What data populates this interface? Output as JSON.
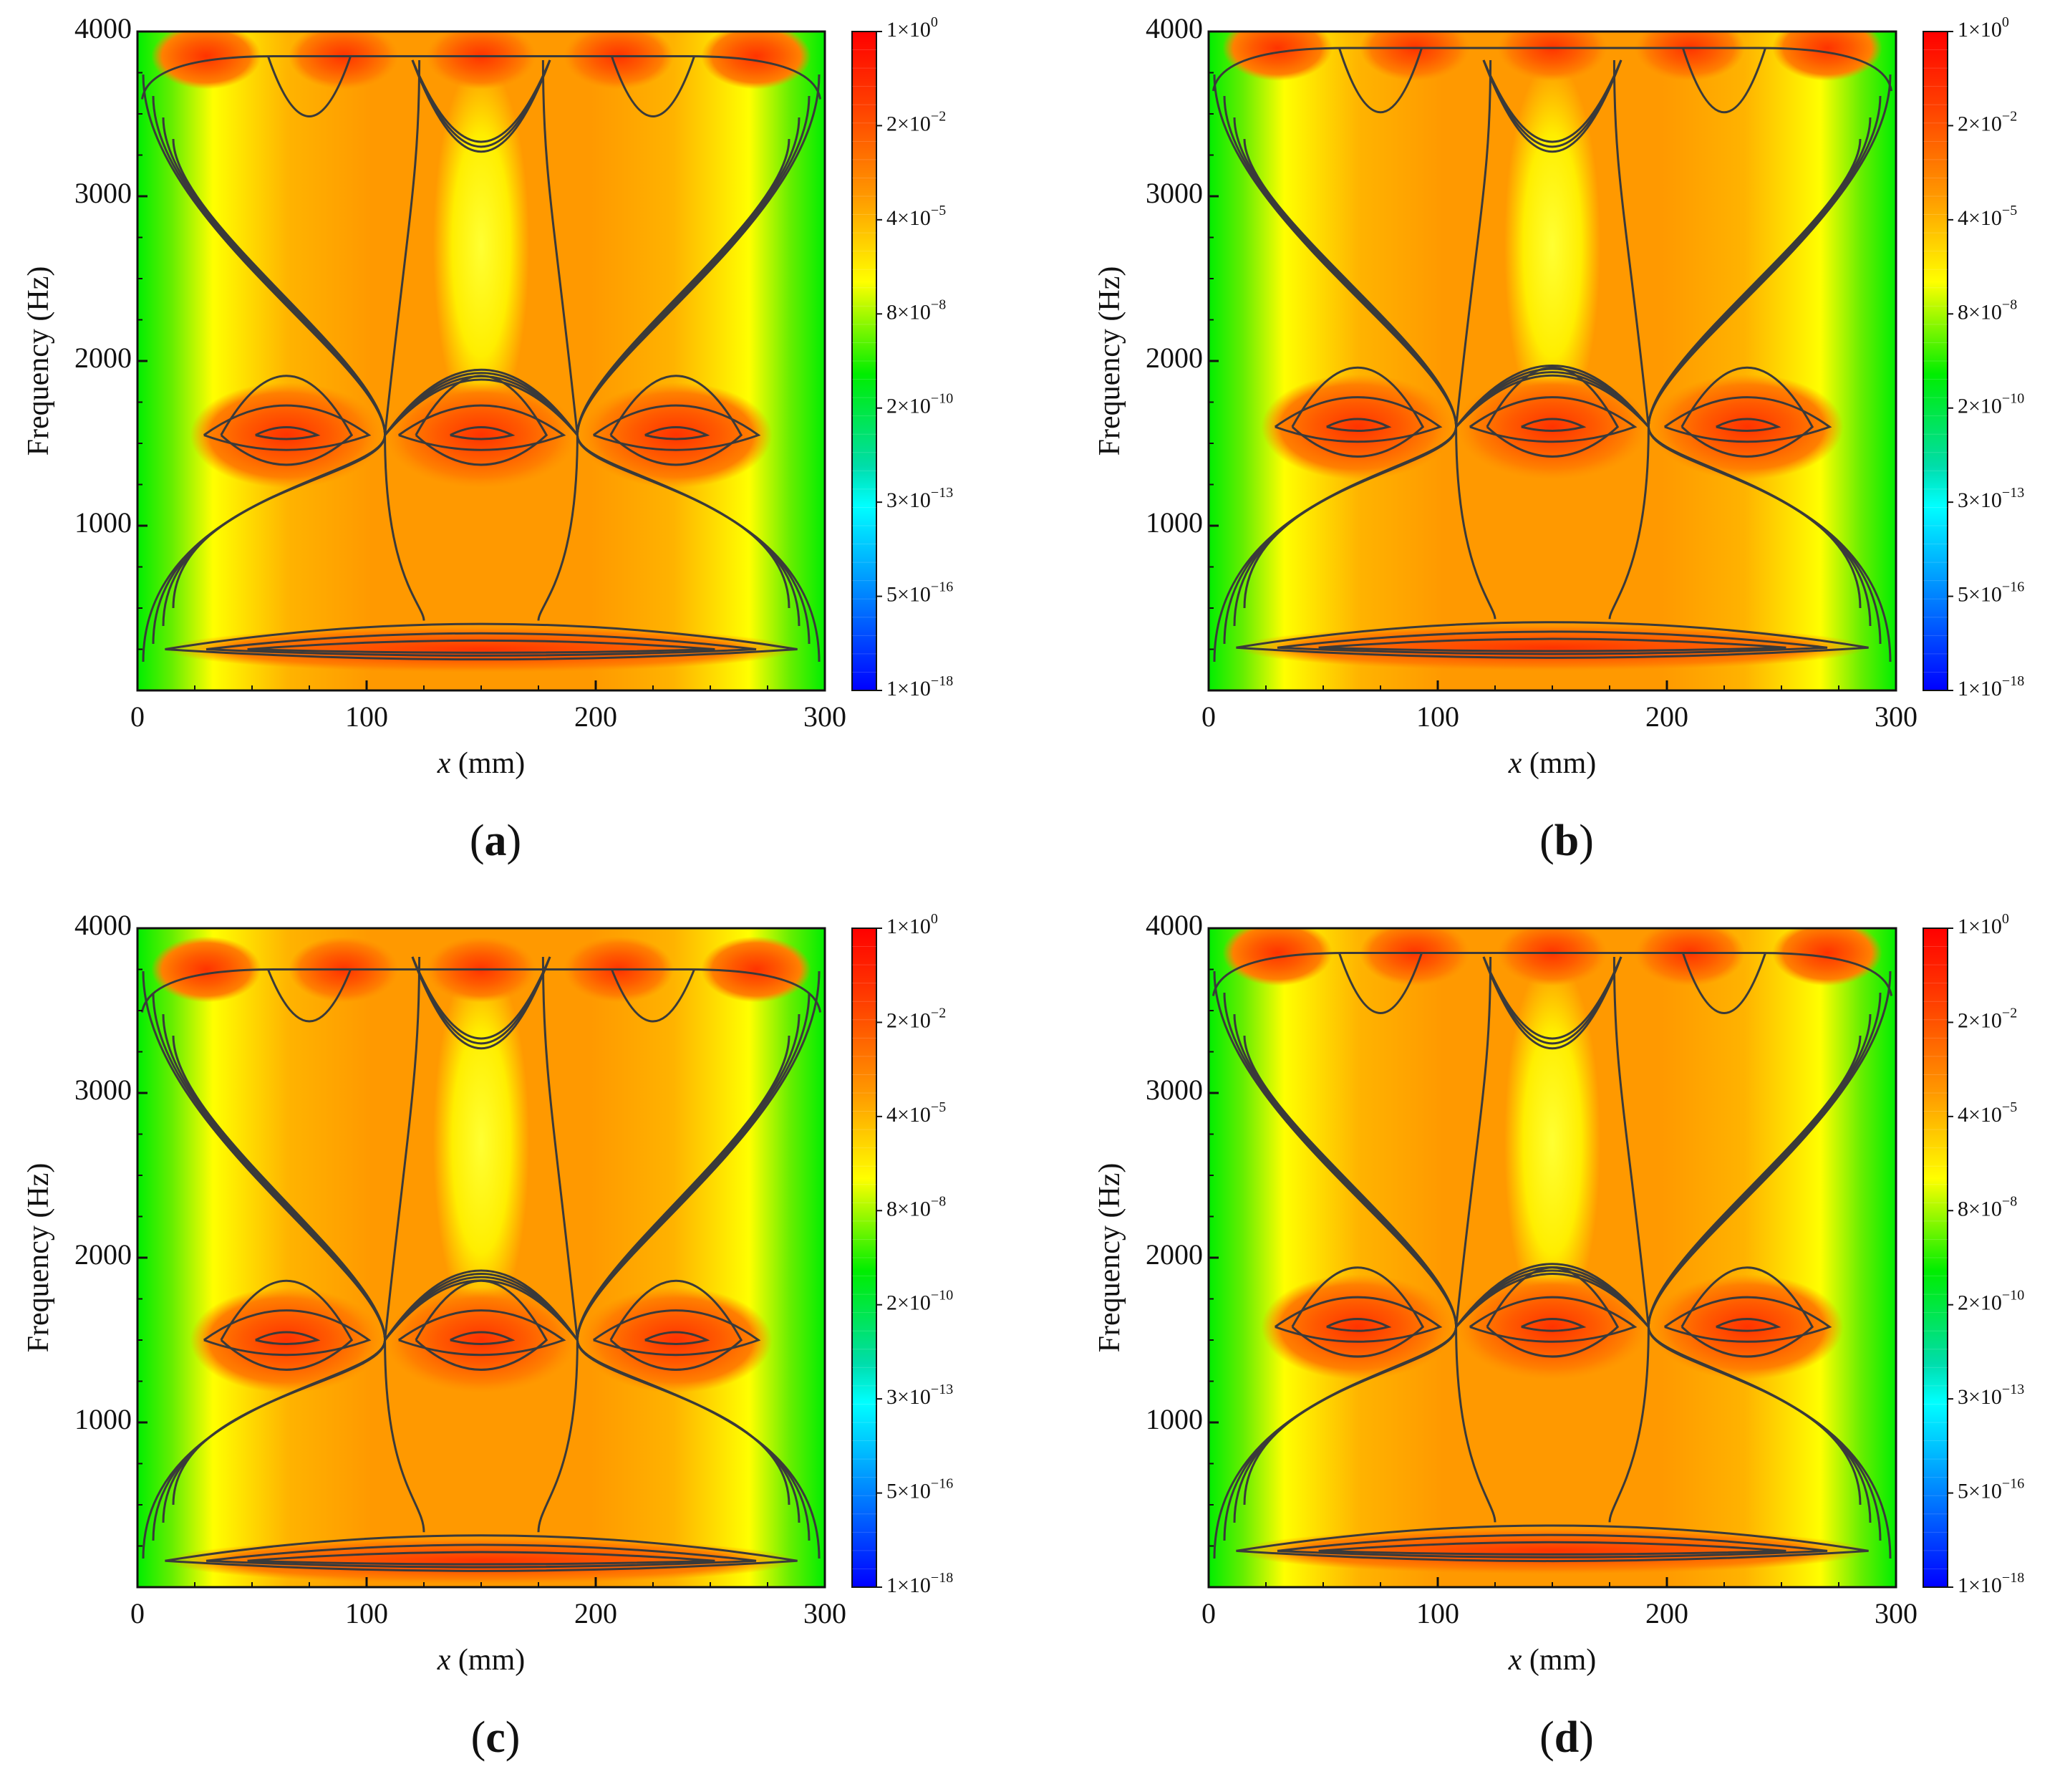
{
  "colors": {
    "low": "#0000ff",
    "mid_low": "#00ffff",
    "mid": "#00ee00",
    "mid_high": "#ffff00",
    "high_mid": "#ff9900",
    "high": "#ff0000",
    "contour": "#3a3a3a"
  },
  "colorbar_labels": [
    {
      "mant": "1×10",
      "exp": "0"
    },
    {
      "mant": "2×10",
      "exp": "−2"
    },
    {
      "mant": "4×10",
      "exp": "−5"
    },
    {
      "mant": "8×10",
      "exp": "−8"
    },
    {
      "mant": "2×10",
      "exp": "−10"
    },
    {
      "mant": "3×10",
      "exp": "−13"
    },
    {
      "mant": "5×10",
      "exp": "−16"
    },
    {
      "mant": "1×10",
      "exp": "−18"
    }
  ],
  "chart_data": [
    {
      "type": "heatmap",
      "panel_label": "a",
      "xlabel_italic": "x",
      "xlabel_rest": " (mm)",
      "ylabel": "Frequency (Hz)",
      "xlim": [
        0,
        300
      ],
      "ylim": [
        0,
        4000
      ],
      "xticks": [
        "0",
        "100",
        "200",
        "300"
      ],
      "yticks": [
        "4000",
        "3000",
        "2000",
        "1000"
      ],
      "colorscale": "log",
      "clim": [
        1e-18,
        1
      ],
      "resonance_bands_hz": [
        250,
        1550,
        3850
      ],
      "peak_positions_mm": [
        65,
        150,
        235
      ]
    },
    {
      "type": "heatmap",
      "panel_label": "b",
      "xlabel_italic": "x",
      "xlabel_rest": " (mm)",
      "ylabel": "Frequency (Hz)",
      "xlim": [
        0,
        300
      ],
      "ylim": [
        0,
        4000
      ],
      "xticks": [
        "0",
        "100",
        "200",
        "300"
      ],
      "yticks": [
        "4000",
        "3000",
        "2000",
        "1000"
      ],
      "colorscale": "log",
      "clim": [
        1e-18,
        1
      ],
      "resonance_bands_hz": [
        260,
        1600,
        3900
      ],
      "peak_positions_mm": [
        65,
        150,
        235
      ]
    },
    {
      "type": "heatmap",
      "panel_label": "c",
      "xlabel_italic": "x",
      "xlabel_rest": " (mm)",
      "ylabel": "Frequency (Hz)",
      "xlim": [
        0,
        300
      ],
      "ylim": [
        0,
        4000
      ],
      "xticks": [
        "0",
        "100",
        "200",
        "300"
      ],
      "yticks": [
        "4000",
        "3000",
        "2000",
        "1000"
      ],
      "colorscale": "log",
      "clim": [
        1e-18,
        1
      ],
      "resonance_bands_hz": [
        160,
        1500,
        3750
      ],
      "peak_positions_mm": [
        65,
        150,
        235
      ]
    },
    {
      "type": "heatmap",
      "panel_label": "d",
      "xlabel_italic": "x",
      "xlabel_rest": " (mm)",
      "ylabel": "Frequency (Hz)",
      "xlim": [
        0,
        300
      ],
      "ylim": [
        0,
        4000
      ],
      "xticks": [
        "0",
        "100",
        "200",
        "300"
      ],
      "yticks": [
        "4000",
        "3000",
        "2000",
        "1000"
      ],
      "colorscale": "log",
      "clim": [
        1e-18,
        1
      ],
      "resonance_bands_hz": [
        220,
        1580,
        3850
      ],
      "peak_positions_mm": [
        65,
        150,
        235
      ]
    }
  ]
}
